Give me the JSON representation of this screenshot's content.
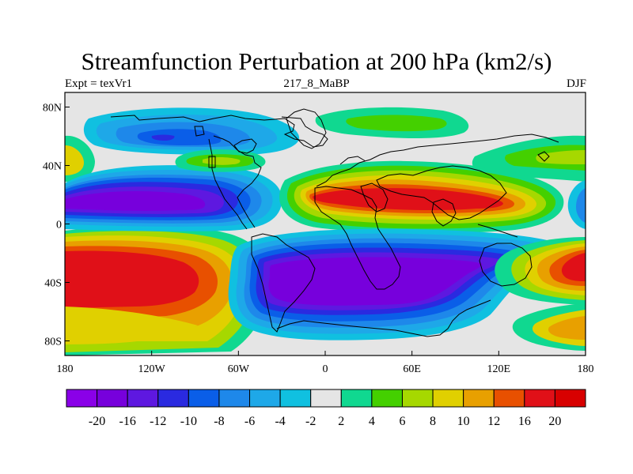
{
  "title": "Streamfunction Perturbation at 200 hPa (km2/s)",
  "subtitle_left": "Expt = texVr1",
  "subtitle_center": "217_8_MaBP",
  "subtitle_right": "DJF",
  "x_ticks": [
    {
      "label": "180",
      "value": -180
    },
    {
      "label": "120W",
      "value": -120
    },
    {
      "label": "60W",
      "value": -60
    },
    {
      "label": "0",
      "value": 0
    },
    {
      "label": "60E",
      "value": 60
    },
    {
      "label": "120E",
      "value": 120
    },
    {
      "label": "180",
      "value": 180
    }
  ],
  "y_ticks": [
    {
      "label": "80N",
      "value": 80
    },
    {
      "label": "40N",
      "value": 40
    },
    {
      "label": "0",
      "value": 0
    },
    {
      "label": "40S",
      "value": -40
    },
    {
      "label": "80S",
      "value": -80
    }
  ],
  "lon_range": [
    -180,
    180
  ],
  "lat_range": [
    -90,
    90
  ],
  "colorbar": {
    "levels": [
      "-20",
      "-16",
      "-12",
      "-10",
      "-8",
      "-6",
      "-4",
      "-2",
      "2",
      "4",
      "6",
      "8",
      "10",
      "12",
      "16",
      "20"
    ],
    "colors": [
      "#8a00e8",
      "#7700dc",
      "#5e18e0",
      "#2a2ae0",
      "#0a5ee8",
      "#1e88ea",
      "#1ea8e8",
      "#10c0e0",
      "#e5e5e5",
      "#10d890",
      "#44d000",
      "#a6d800",
      "#e0d000",
      "#e8a000",
      "#e85000",
      "#e01018",
      "#d80000"
    ]
  },
  "colors": {
    "map_background": "#e5e5e5",
    "coastline": "#000000"
  }
}
